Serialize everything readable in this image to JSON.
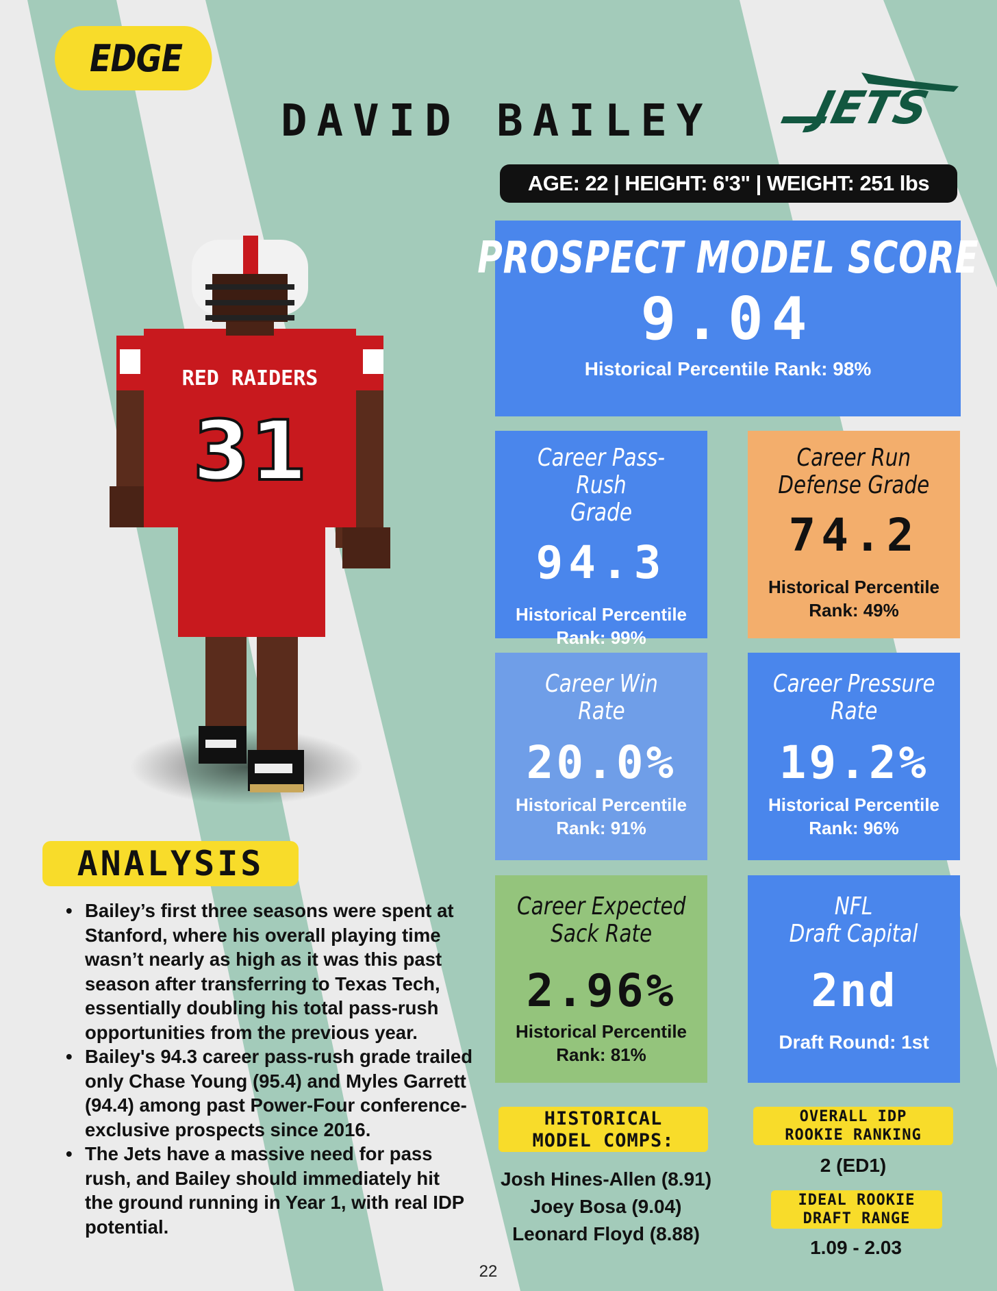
{
  "colors": {
    "background": "#ebebeb",
    "stripe_green": "#a3cbba",
    "accent_yellow": "#f8dc2a",
    "box_blue": "#4a86ec",
    "box_light_blue": "#6f9ee8",
    "box_orange": "#f3ae6c",
    "box_green": "#94c47c",
    "jets_green": "#125740",
    "jersey_red": "#c8191e"
  },
  "header": {
    "position": "EDGE",
    "player_name": "DAVID BAILEY",
    "team_logo_text": "JETS",
    "bio": "AGE: 22 | HEIGHT: 6'3\" | WEIGHT: 251 lbs"
  },
  "player_image": {
    "description_icon": "pixel-football-player",
    "jersey_text": "RED RAIDERS",
    "jersey_number": "31"
  },
  "prospect_model": {
    "title": "PROSPECT MODEL SCORE",
    "value": "9.04",
    "sub": "Historical  Percentile Rank: 98%"
  },
  "stats": [
    {
      "title": "Career Pass-Rush\nGrade",
      "value": "94.3",
      "sub": "Historical  Percentile\nRank: 99%",
      "color": "#4a86ec",
      "dark": false
    },
    {
      "title": "Career Run\nDefense Grade",
      "value": "74.2",
      "sub": "Historical  Percentile\nRank: 49%",
      "color": "#f3ae6c",
      "dark": true
    },
    {
      "title": "Career Win\nRate",
      "value": "20.0%",
      "sub": "Historical  Percentile\nRank: 91%",
      "color": "#6f9ee8",
      "dark": false
    },
    {
      "title": "Career Pressure\nRate",
      "value": "19.2%",
      "sub": "Historical  Percentile\nRank: 96%",
      "color": "#4a86ec",
      "dark": false
    },
    {
      "title": "Career Expected\nSack Rate",
      "value": "2.96%",
      "sub": "Historical  Percentile\nRank: 81%",
      "color": "#94c47c",
      "dark": true
    },
    {
      "title": "NFL\nDraft Capital",
      "value": "2nd",
      "sub": "Draft Round: 1st",
      "color": "#4a86ec",
      "dark": false
    }
  ],
  "analysis": {
    "heading": "ANALYSIS",
    "bullets": [
      "Bailey’s first three seasons were spent at Stanford, where his overall playing time wasn’t nearly as high as it was this past season after transferring to Texas Tech, essentially doubling his total pass-rush opportunities from the previous year.",
      "Bailey's 94.3 career pass-rush grade trailed only Chase Young (95.4) and Myles Garrett (94.4) among past Power-Four conference-exclusive prospects since 2016.",
      "The Jets have a massive need for pass rush, and Bailey should immediately hit the ground running in Year 1, with real IDP potential."
    ]
  },
  "comps": {
    "heading": "HISTORICAL\nMODEL COMPS:",
    "items": [
      "Josh Hines-Allen (8.91)",
      "Joey Bosa (9.04)",
      "Leonard Floyd (8.88)"
    ]
  },
  "rookie_ranking": {
    "heading": "OVERALL IDP\nROOKIE RANKING",
    "value": "2 (ED1)"
  },
  "draft_range": {
    "heading": "IDEAL ROOKIE\nDRAFT RANGE",
    "value": "1.09 - 2.03"
  },
  "page_number": "22"
}
